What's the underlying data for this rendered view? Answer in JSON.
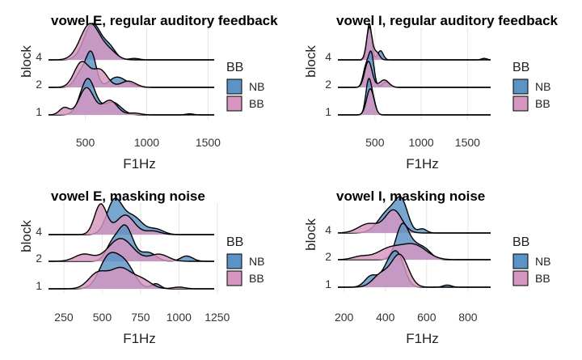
{
  "colors": {
    "NB": "#5b93c5",
    "BB": "#d696bf",
    "overlap": "#9a7fb5",
    "grid": "#e4e4e4"
  },
  "chart_data": [
    {
      "type": "ridgeline",
      "title": "vowel E, regular auditory feedback",
      "xlabel": "F1Hz",
      "ylabel": "block",
      "xlim": [
        200,
        1550
      ],
      "xticks": [
        500,
        1000,
        1500
      ],
      "xtick_labels": [
        "500",
        "1000",
        "1500"
      ],
      "rows": [
        "1",
        "2",
        "4"
      ],
      "legend": {
        "title": "BB",
        "entries": [
          "NB",
          "BB"
        ],
        "position": "right"
      },
      "series": [
        {
          "row": "1",
          "group": "NB",
          "components": [
            [
              520,
              60,
              1.0
            ],
            [
              720,
              70,
              0.35
            ],
            [
              1350,
              30,
              0.03
            ]
          ]
        },
        {
          "row": "1",
          "group": "BB",
          "components": [
            [
              330,
              40,
              0.2
            ],
            [
              510,
              60,
              0.75
            ],
            [
              700,
              60,
              0.4
            ],
            [
              900,
              50,
              0.05
            ]
          ]
        },
        {
          "row": "2",
          "group": "NB",
          "components": [
            [
              550,
              40,
              1.0
            ],
            [
              470,
              50,
              0.5
            ],
            [
              750,
              60,
              0.3
            ],
            [
              850,
              60,
              0.1
            ]
          ]
        },
        {
          "row": "2",
          "group": "BB",
          "components": [
            [
              470,
              60,
              0.8
            ],
            [
              620,
              60,
              0.55
            ],
            [
              850,
              60,
              0.2
            ]
          ]
        },
        {
          "row": "4",
          "group": "NB",
          "components": [
            [
              560,
              70,
              1.0
            ],
            [
              700,
              50,
              0.3
            ],
            [
              900,
              40,
              0.04
            ]
          ]
        },
        {
          "row": "4",
          "group": "BB",
          "components": [
            [
              540,
              80,
              1.0
            ],
            [
              700,
              60,
              0.2
            ]
          ]
        }
      ]
    },
    {
      "type": "ridgeline",
      "title": "vowel I, regular auditory feedback",
      "xlabel": "F1Hz",
      "ylabel": "block",
      "xlim": [
        100,
        1750
      ],
      "xticks": [
        500,
        1000,
        1500
      ],
      "xtick_labels": [
        "500",
        "1000",
        "1500"
      ],
      "rows": [
        "1",
        "2",
        "4"
      ],
      "legend": {
        "title": "BB",
        "entries": [
          "NB",
          "BB"
        ],
        "position": "right"
      },
      "series": [
        {
          "row": "1",
          "group": "NB",
          "components": [
            [
              430,
              30,
              1.0
            ],
            [
              480,
              30,
              0.4
            ]
          ]
        },
        {
          "row": "1",
          "group": "BB",
          "components": [
            [
              450,
              40,
              0.8
            ]
          ]
        },
        {
          "row": "2",
          "group": "NB",
          "components": [
            [
              460,
              30,
              0.9
            ],
            [
              400,
              30,
              0.5
            ],
            [
              620,
              40,
              0.15
            ]
          ]
        },
        {
          "row": "2",
          "group": "BB",
          "components": [
            [
              430,
              40,
              0.7
            ],
            [
              600,
              50,
              0.2
            ]
          ]
        },
        {
          "row": "4",
          "group": "NB",
          "components": [
            [
              440,
              25,
              1.0
            ],
            [
              560,
              30,
              0.25
            ],
            [
              1680,
              30,
              0.04
            ]
          ]
        },
        {
          "row": "4",
          "group": "BB",
          "components": [
            [
              440,
              30,
              0.9
            ],
            [
              520,
              30,
              0.2
            ]
          ]
        }
      ]
    },
    {
      "type": "ridgeline",
      "title": "vowel E, masking noise",
      "xlabel": "F1Hz",
      "ylabel": "block",
      "xlim": [
        150,
        1230
      ],
      "xticks": [
        250,
        500,
        750,
        1000,
        1250
      ],
      "xtick_labels": [
        "250",
        "500",
        "750",
        "1000",
        "1250"
      ],
      "rows": [
        "1",
        "2",
        "4"
      ],
      "legend": {
        "title": "BB",
        "entries": [
          "NB",
          "BB"
        ],
        "position": "right"
      },
      "series": [
        {
          "row": "1",
          "group": "NB",
          "components": [
            [
              540,
              60,
              0.9
            ],
            [
              650,
              60,
              0.7
            ],
            [
              850,
              30,
              0.15
            ]
          ]
        },
        {
          "row": "1",
          "group": "BB",
          "components": [
            [
              470,
              60,
              0.45
            ],
            [
              620,
              70,
              0.6
            ],
            [
              760,
              60,
              0.25
            ],
            [
              1000,
              40,
              0.05
            ]
          ]
        },
        {
          "row": "2",
          "group": "NB",
          "components": [
            [
              650,
              50,
              1.0
            ],
            [
              560,
              40,
              0.4
            ],
            [
              800,
              50,
              0.25
            ],
            [
              1050,
              40,
              0.15
            ]
          ]
        },
        {
          "row": "2",
          "group": "BB",
          "components": [
            [
              380,
              60,
              0.2
            ],
            [
              620,
              80,
              0.65
            ],
            [
              870,
              60,
              0.2
            ]
          ]
        },
        {
          "row": "4",
          "group": "NB",
          "components": [
            [
              580,
              50,
              0.95
            ],
            [
              700,
              60,
              0.5
            ],
            [
              850,
              50,
              0.15
            ]
          ]
        },
        {
          "row": "4",
          "group": "BB",
          "components": [
            [
              490,
              40,
              0.85
            ],
            [
              650,
              60,
              0.55
            ],
            [
              830,
              50,
              0.1
            ]
          ]
        }
      ]
    },
    {
      "type": "ridgeline",
      "title": "vowel I, masking noise",
      "xlabel": "F1Hz",
      "ylabel": "block",
      "xlim": [
        170,
        910
      ],
      "xticks": [
        200,
        400,
        600,
        800
      ],
      "xtick_labels": [
        "200",
        "400",
        "600",
        "800"
      ],
      "rows": [
        "1",
        "2",
        "4"
      ],
      "legend": {
        "title": "BB",
        "entries": [
          "NB",
          "BB"
        ],
        "position": "right"
      },
      "series": [
        {
          "row": "1",
          "group": "NB",
          "components": [
            [
              330,
              30,
              0.25
            ],
            [
              430,
              40,
              0.65
            ],
            [
              470,
              30,
              0.35
            ],
            [
              700,
              20,
              0.05
            ]
          ]
        },
        {
          "row": "1",
          "group": "BB",
          "components": [
            [
              380,
              40,
              0.3
            ],
            [
              470,
              40,
              0.75
            ]
          ]
        },
        {
          "row": "2",
          "group": "NB",
          "components": [
            [
              480,
              30,
              1.0
            ],
            [
              540,
              40,
              0.45
            ],
            [
              600,
              30,
              0.2
            ]
          ]
        },
        {
          "row": "2",
          "group": "BB",
          "components": [
            [
              280,
              40,
              0.1
            ],
            [
              420,
              60,
              0.35
            ],
            [
              540,
              60,
              0.45
            ]
          ]
        },
        {
          "row": "4",
          "group": "NB",
          "components": [
            [
              420,
              50,
              0.85
            ],
            [
              480,
              30,
              0.9
            ],
            [
              580,
              20,
              0.15
            ]
          ]
        },
        {
          "row": "4",
          "group": "BB",
          "components": [
            [
              320,
              50,
              0.35
            ],
            [
              440,
              40,
              0.85
            ]
          ]
        }
      ]
    }
  ]
}
